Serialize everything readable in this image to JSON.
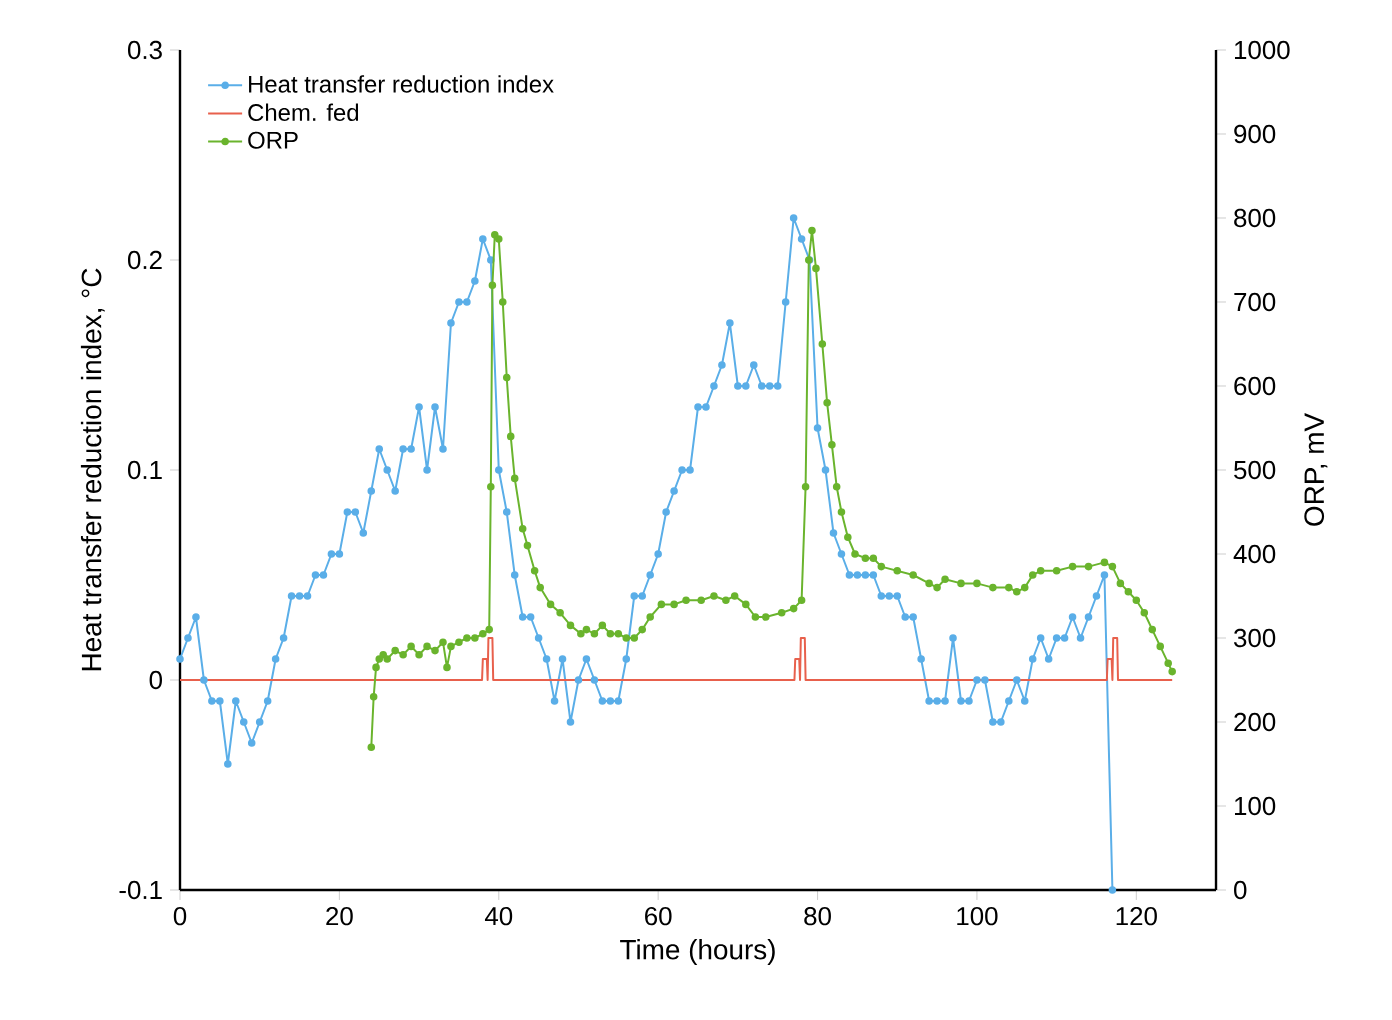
{
  "chart_data": {
    "type": "line",
    "xlabel": "Time (hours)",
    "ylabel": "Heat transfer reduction index, °C",
    "y2label": "ORP, mV",
    "xlim": [
      0,
      130
    ],
    "xticks": [
      0,
      20,
      40,
      60,
      80,
      100,
      120
    ],
    "ylim": [
      -0.1,
      0.3
    ],
    "yticks": [
      -0.1,
      0,
      0.1,
      0.2,
      0.3
    ],
    "y2lim": [
      0,
      1000
    ],
    "y2ticks": [
      0,
      100,
      200,
      300,
      400,
      500,
      600,
      700,
      800,
      900,
      1000
    ],
    "legend": "top left",
    "series": [
      {
        "name": "Heat transfer reduction index",
        "color": "#5aaee8",
        "marker": "circle",
        "x": [
          0,
          1,
          2,
          3,
          4,
          5,
          6,
          7,
          8,
          9,
          10,
          11,
          12,
          13,
          14,
          15,
          16,
          17,
          18,
          19,
          20,
          21,
          22,
          23,
          24,
          25,
          26,
          27,
          28,
          29,
          30,
          31,
          32,
          33,
          34,
          35,
          36,
          37,
          38,
          39,
          40,
          41,
          42,
          43,
          44,
          45,
          46,
          47,
          48,
          49,
          50,
          51,
          52,
          53,
          54,
          55,
          56,
          57,
          58,
          59,
          60,
          61,
          62,
          63,
          64,
          65,
          66,
          67,
          68,
          69,
          70,
          71,
          72,
          73,
          74,
          75,
          76,
          77,
          78,
          79,
          80,
          81,
          82,
          83,
          84,
          85,
          86,
          87,
          88,
          89,
          90,
          91,
          92,
          93,
          94,
          95,
          96,
          97,
          98,
          99,
          100,
          101,
          102,
          103,
          104,
          105,
          106,
          107,
          108,
          109,
          110,
          111,
          112,
          113,
          114,
          115,
          116,
          117
        ],
        "values": [
          0.01,
          0.02,
          0.03,
          0.0,
          -0.01,
          -0.01,
          -0.04,
          -0.01,
          -0.02,
          -0.03,
          -0.02,
          -0.01,
          0.01,
          0.02,
          0.04,
          0.04,
          0.04,
          0.05,
          0.05,
          0.06,
          0.06,
          0.08,
          0.08,
          0.07,
          0.09,
          0.11,
          0.1,
          0.09,
          0.11,
          0.11,
          0.13,
          0.1,
          0.13,
          0.11,
          0.17,
          0.18,
          0.18,
          0.19,
          0.21,
          0.2,
          0.1,
          0.08,
          0.05,
          0.03,
          0.03,
          0.02,
          0.01,
          -0.01,
          0.01,
          -0.02,
          0.0,
          0.01,
          0.0,
          -0.01,
          -0.01,
          -0.01,
          0.01,
          0.04,
          0.04,
          0.05,
          0.06,
          0.08,
          0.09,
          0.1,
          0.1,
          0.13,
          0.13,
          0.14,
          0.15,
          0.17,
          0.14,
          0.14,
          0.15,
          0.14,
          0.14,
          0.14,
          0.18,
          0.22,
          0.21,
          0.2,
          0.12,
          0.1,
          0.07,
          0.06,
          0.05,
          0.05,
          0.05,
          0.05,
          0.04,
          0.04,
          0.04,
          0.03,
          0.03,
          0.01,
          -0.01,
          -0.01,
          -0.01,
          0.02,
          -0.01,
          -0.01,
          0.0,
          0.0,
          -0.02,
          -0.02,
          -0.01,
          0.0,
          -0.01,
          0.01,
          0.02,
          0.01,
          0.02,
          0.02,
          0.03,
          0.02,
          0.03,
          0.04,
          0.05,
          -0.1
        ]
      },
      {
        "name": "Chem. fed",
        "color": "#e8604c",
        "marker": "none",
        "x": [
          0,
          37.9,
          38,
          38.5,
          38.6,
          38.7,
          39.2,
          39.3,
          77.1,
          77.2,
          77.7,
          77.8,
          77.9,
          78.4,
          78.5,
          116.3,
          116.4,
          116.9,
          117,
          117.1,
          117.6,
          117.7,
          124.5
        ],
        "values": [
          0,
          0,
          0.01,
          0.01,
          0,
          0.02,
          0.02,
          0,
          0,
          0.01,
          0.01,
          0,
          0.02,
          0.02,
          0,
          0,
          0.01,
          0.01,
          0,
          0.02,
          0.02,
          0,
          0
        ]
      },
      {
        "name": "ORP",
        "color": "#6ab42d",
        "marker": "circle",
        "axis": "y2",
        "x": [
          24,
          24.3,
          24.6,
          25,
          25.5,
          26,
          27,
          28,
          29,
          30,
          31,
          32,
          33,
          33.5,
          34,
          35,
          36,
          37,
          38,
          38.8,
          39,
          39.2,
          39.5,
          40,
          40.5,
          41,
          41.5,
          42,
          43,
          43.6,
          44.5,
          45.2,
          46.5,
          47.7,
          49,
          50.3,
          51,
          52,
          53,
          54,
          55,
          56,
          57,
          58,
          59,
          60.4,
          62,
          63.5,
          65.4,
          67,
          68.5,
          69.6,
          71,
          72.2,
          73.5,
          75.5,
          77,
          78,
          78.5,
          78.9,
          79.3,
          79.8,
          80.6,
          81.2,
          81.8,
          82.4,
          83,
          83.8,
          84.7,
          86,
          87,
          88,
          90,
          92,
          94,
          95,
          96,
          98,
          100,
          102,
          104,
          105,
          106,
          107,
          108,
          110,
          112,
          114,
          116,
          117,
          118,
          119,
          120,
          121,
          122,
          123,
          124,
          124.5
        ],
        "values": [
          170,
          230,
          265,
          275,
          280,
          275,
          285,
          280,
          290,
          280,
          290,
          285,
          295,
          265,
          290,
          295,
          300,
          300,
          305,
          310,
          480,
          720,
          780,
          775,
          700,
          610,
          540,
          490,
          430,
          410,
          380,
          360,
          340,
          330,
          315,
          305,
          310,
          305,
          315,
          305,
          305,
          300,
          300,
          310,
          325,
          340,
          340,
          345,
          345,
          350,
          345,
          350,
          340,
          325,
          325,
          330,
          335,
          345,
          480,
          750,
          785,
          740,
          650,
          580,
          530,
          480,
          450,
          420,
          400,
          395,
          395,
          385,
          380,
          375,
          365,
          360,
          370,
          365,
          365,
          360,
          360,
          355,
          360,
          375,
          380,
          380,
          385,
          385,
          390,
          385,
          365,
          355,
          345,
          330,
          310,
          290,
          270,
          260
        ]
      }
    ]
  }
}
